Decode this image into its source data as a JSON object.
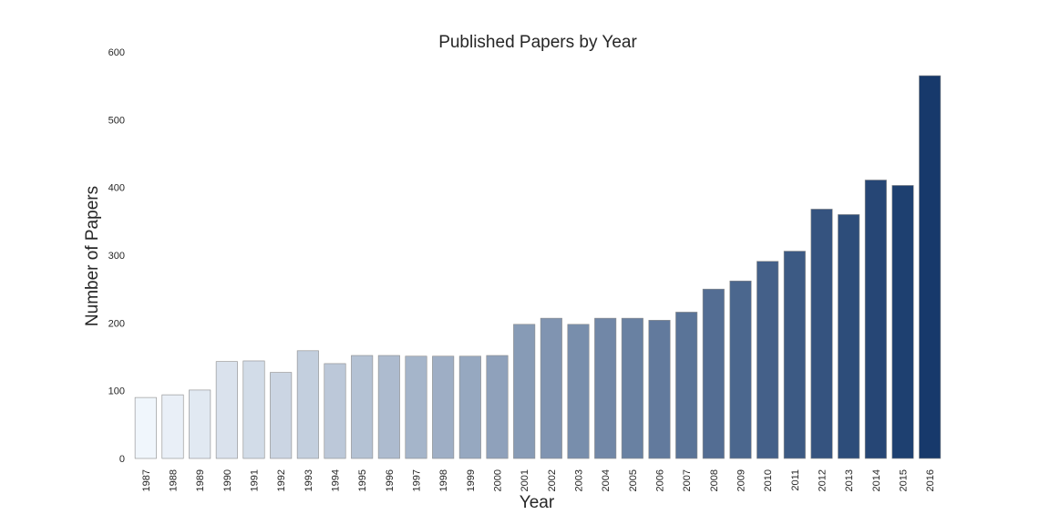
{
  "chart_data": {
    "type": "bar",
    "title": "Published Papers by Year",
    "xlabel": "Year",
    "ylabel": "Number of Papers",
    "ylim": [
      0,
      600
    ],
    "yticks": [
      0,
      100,
      200,
      300,
      400,
      500,
      600
    ],
    "grid": false,
    "color_scale": "Blues",
    "colors": {
      "start": "#f0f6fc",
      "end": "#17396b"
    },
    "categories": [
      "1987",
      "1988",
      "1989",
      "1990",
      "1991",
      "1992",
      "1993",
      "1994",
      "1995",
      "1996",
      "1997",
      "1998",
      "1999",
      "2000",
      "2001",
      "2002",
      "2003",
      "2004",
      "2005",
      "2006",
      "2007",
      "2008",
      "2009",
      "2010",
      "2011",
      "2012",
      "2013",
      "2014",
      "2015",
      "2016"
    ],
    "values": [
      90,
      94,
      101,
      143,
      144,
      127,
      159,
      140,
      152,
      152,
      151,
      151,
      151,
      152,
      198,
      207,
      198,
      207,
      207,
      204,
      216,
      250,
      262,
      291,
      306,
      368,
      360,
      411,
      403,
      565
    ]
  }
}
